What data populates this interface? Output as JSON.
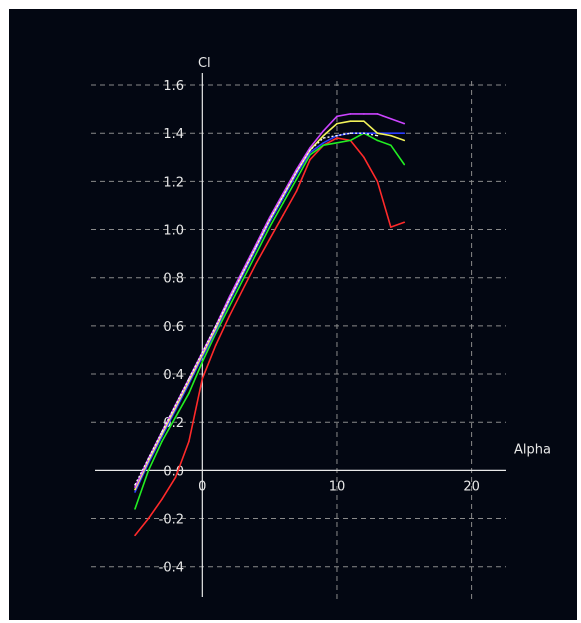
{
  "chart_data": {
    "type": "line",
    "title": "",
    "xlabel": "Alpha",
    "ylabel": "Cl",
    "xlim": [
      -5,
      23
    ],
    "ylim": [
      -0.53,
      1.65
    ],
    "x_ticks": [
      0,
      10,
      20
    ],
    "x_tick_labels": [
      "0",
      "10",
      "20"
    ],
    "y_ticks": [
      -0.4,
      -0.2,
      0.0,
      0.2,
      0.4,
      0.6,
      0.8,
      1.0,
      1.2,
      1.4,
      1.6
    ],
    "y_tick_labels": [
      "-0.4",
      "-0.2",
      "0.0",
      "0.2",
      "0.4",
      "0.6",
      "0.8",
      "1.0",
      "1.2",
      "1.4",
      "1.6"
    ],
    "grid": true,
    "grid_style": "dashed",
    "background": "#030712",
    "axis_color": "#e8e8e8",
    "grid_color": "#8a8a8a",
    "series": [
      {
        "color": "#ff2a2a",
        "x": [
          -5,
          -4,
          -3,
          -2,
          -1,
          0,
          1,
          2,
          3,
          4,
          5,
          6,
          7,
          8,
          9,
          10,
          11,
          12,
          13,
          14,
          15
        ],
        "y": [
          -0.27,
          -0.2,
          -0.12,
          -0.03,
          0.12,
          0.38,
          0.52,
          0.64,
          0.75,
          0.86,
          0.96,
          1.06,
          1.16,
          1.29,
          1.35,
          1.38,
          1.37,
          1.3,
          1.2,
          1.01,
          1.03
        ]
      },
      {
        "color": "#22ee22",
        "x": [
          -5,
          -4,
          -3,
          -2,
          -1,
          0,
          1,
          2,
          3,
          4,
          5,
          6,
          7,
          8,
          9,
          10,
          11,
          12,
          13,
          14,
          15
        ],
        "y": [
          -0.16,
          0.0,
          0.12,
          0.22,
          0.32,
          0.45,
          0.57,
          0.68,
          0.79,
          0.9,
          1.01,
          1.11,
          1.21,
          1.31,
          1.35,
          1.36,
          1.37,
          1.4,
          1.37,
          1.35,
          1.27
        ]
      },
      {
        "color": "#2a3cff",
        "x": [
          -5,
          -4,
          -3,
          -2,
          -1,
          0,
          1,
          2,
          3,
          4,
          5,
          6,
          7,
          8,
          9,
          10,
          11,
          12,
          13,
          14,
          15
        ],
        "y": [
          -0.09,
          0.03,
          0.14,
          0.25,
          0.36,
          0.47,
          0.58,
          0.7,
          0.81,
          0.92,
          1.03,
          1.13,
          1.23,
          1.32,
          1.36,
          1.39,
          1.4,
          1.4,
          1.4,
          1.4,
          1.4
        ]
      },
      {
        "color": "#f2f25a",
        "x": [
          -5,
          -4,
          -3,
          -2,
          -1,
          0,
          1,
          2,
          3,
          4,
          5,
          6,
          7,
          8,
          9,
          10,
          11,
          12,
          13,
          14,
          15
        ],
        "y": [
          -0.08,
          0.04,
          0.15,
          0.26,
          0.37,
          0.48,
          0.59,
          0.71,
          0.82,
          0.93,
          1.04,
          1.14,
          1.24,
          1.33,
          1.39,
          1.44,
          1.45,
          1.45,
          1.4,
          1.39,
          1.37
        ]
      },
      {
        "color": "#cc44ff",
        "x": [
          -5,
          -4,
          -3,
          -2,
          -1,
          0,
          1,
          2,
          3,
          4,
          5,
          6,
          7,
          8,
          9,
          10,
          11,
          12,
          13,
          14,
          15
        ],
        "y": [
          -0.07,
          0.05,
          0.16,
          0.27,
          0.38,
          0.49,
          0.6,
          0.72,
          0.83,
          0.94,
          1.05,
          1.15,
          1.25,
          1.34,
          1.41,
          1.47,
          1.48,
          1.48,
          1.48,
          1.46,
          1.44
        ]
      },
      {
        "color": "#f4f4f4",
        "dashed": true,
        "x": [
          -5,
          -4,
          -3,
          -2,
          -1,
          0,
          1,
          2,
          3,
          4,
          5,
          6,
          7,
          8,
          9,
          10,
          11,
          12,
          13
        ],
        "y": [
          -0.06,
          0.05,
          0.16,
          0.27,
          0.38,
          0.49,
          0.6,
          0.71,
          0.82,
          0.93,
          1.04,
          1.14,
          1.24,
          1.33,
          1.38,
          1.39,
          1.4,
          1.4,
          1.39
        ]
      }
    ]
  }
}
